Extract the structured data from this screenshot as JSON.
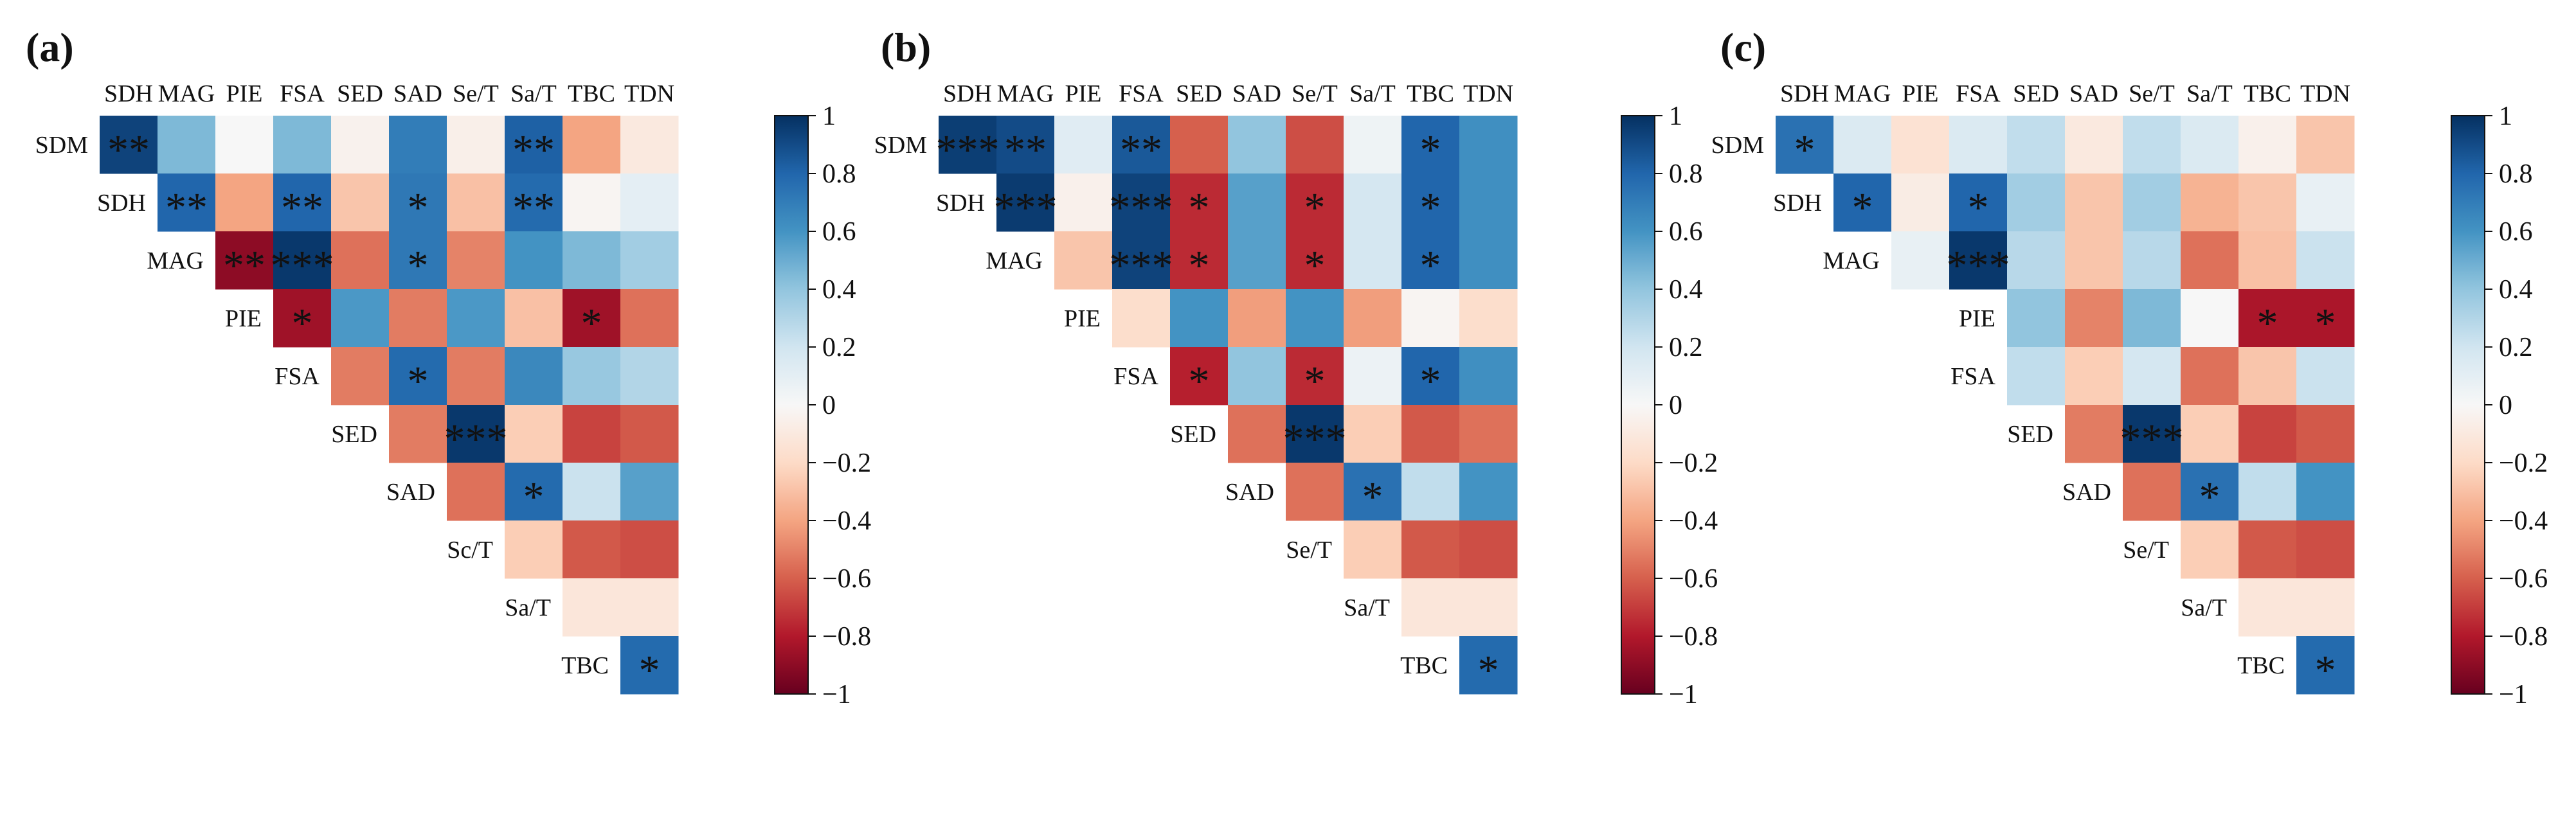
{
  "colors": {
    "positive": "#053061",
    "neutral": "#f7f7f7",
    "negative": "#67001f"
  },
  "chart_data": [
    {
      "type": "heatmap",
      "panel": "(a)",
      "x_labels": [
        "SDH",
        "MAG",
        "PIE",
        "FSA",
        "SED",
        "SAD",
        "Se/T",
        "Sa/T",
        "TBC",
        "TDN"
      ],
      "y_labels": [
        "SDM",
        "SDH",
        "MAG",
        "PIE",
        "FSA",
        "SED",
        "SAD",
        "Sc/T",
        "Sa/T",
        "TBC"
      ],
      "values": [
        [
          0.93,
          0.45,
          0.0,
          0.45,
          -0.04,
          0.7,
          -0.06,
          0.82,
          -0.4,
          -0.1
        ],
        [
          null,
          0.8,
          -0.4,
          0.8,
          -0.28,
          0.72,
          -0.3,
          0.78,
          -0.02,
          0.1
        ],
        [
          null,
          null,
          -0.9,
          0.97,
          -0.55,
          0.72,
          -0.5,
          0.6,
          0.45,
          0.35
        ],
        [
          null,
          null,
          null,
          -0.85,
          0.58,
          -0.52,
          0.58,
          -0.3,
          -0.85,
          -0.55
        ],
        [
          null,
          null,
          null,
          null,
          -0.52,
          0.78,
          -0.52,
          0.65,
          0.38,
          0.3
        ],
        [
          null,
          null,
          null,
          null,
          null,
          -0.52,
          0.97,
          -0.25,
          -0.68,
          -0.62
        ],
        [
          null,
          null,
          null,
          null,
          null,
          null,
          -0.55,
          0.78,
          0.22,
          0.55
        ],
        [
          null,
          null,
          null,
          null,
          null,
          null,
          null,
          -0.25,
          -0.62,
          -0.65
        ],
        [
          null,
          null,
          null,
          null,
          null,
          null,
          null,
          null,
          -0.12,
          -0.12
        ],
        [
          null,
          null,
          null,
          null,
          null,
          null,
          null,
          null,
          null,
          0.78
        ]
      ],
      "annotations": [
        [
          0,
          0,
          "**"
        ],
        [
          0,
          7,
          "**"
        ],
        [
          1,
          1,
          "**"
        ],
        [
          1,
          3,
          "**"
        ],
        [
          1,
          5,
          "*"
        ],
        [
          1,
          7,
          "**"
        ],
        [
          2,
          2,
          "**"
        ],
        [
          2,
          3,
          "***"
        ],
        [
          2,
          5,
          "*"
        ],
        [
          3,
          3,
          "*"
        ],
        [
          3,
          8,
          "*"
        ],
        [
          4,
          5,
          "*"
        ],
        [
          5,
          6,
          "***"
        ],
        [
          6,
          7,
          "*"
        ],
        [
          9,
          9,
          "*"
        ]
      ],
      "colorbar": {
        "min": -1,
        "max": 1,
        "ticks": [
          "1",
          "0.8",
          "0.6",
          "0.4",
          "0.2",
          "0",
          "−0.2",
          "−0.4",
          "−0.6",
          "−0.8",
          "−1"
        ]
      }
    },
    {
      "type": "heatmap",
      "panel": "(b)",
      "x_labels": [
        "SDH",
        "MAG",
        "PIE",
        "FSA",
        "SED",
        "SAD",
        "Se/T",
        "Sa/T",
        "TBC",
        "TDN"
      ],
      "y_labels": [
        "SDM",
        "SDH",
        "MAG",
        "PIE",
        "FSA",
        "SED",
        "SAD",
        "Se/T",
        "Sa/T",
        "TBC"
      ],
      "values": [
        [
          0.95,
          0.9,
          0.12,
          0.85,
          -0.6,
          0.4,
          -0.65,
          0.05,
          0.8,
          0.62
        ],
        [
          null,
          0.96,
          -0.05,
          0.93,
          -0.75,
          0.55,
          -0.75,
          0.18,
          0.8,
          0.62
        ],
        [
          null,
          null,
          -0.28,
          0.93,
          -0.75,
          0.55,
          -0.75,
          0.18,
          0.8,
          0.62
        ],
        [
          null,
          null,
          null,
          -0.18,
          0.6,
          -0.42,
          0.6,
          -0.42,
          -0.02,
          -0.18
        ],
        [
          null,
          null,
          null,
          null,
          -0.78,
          0.4,
          -0.75,
          0.06,
          0.8,
          0.62
        ],
        [
          null,
          null,
          null,
          null,
          null,
          -0.55,
          0.97,
          -0.25,
          -0.62,
          -0.55
        ],
        [
          null,
          null,
          null,
          null,
          null,
          null,
          -0.55,
          0.75,
          0.25,
          0.6
        ],
        [
          null,
          null,
          null,
          null,
          null,
          null,
          null,
          -0.25,
          -0.62,
          -0.65
        ],
        [
          null,
          null,
          null,
          null,
          null,
          null,
          null,
          null,
          -0.12,
          -0.12
        ],
        [
          null,
          null,
          null,
          null,
          null,
          null,
          null,
          null,
          null,
          0.78
        ]
      ],
      "annotations": [
        [
          0,
          0,
          "***"
        ],
        [
          0,
          1,
          "**"
        ],
        [
          0,
          3,
          "**"
        ],
        [
          0,
          8,
          "*"
        ],
        [
          1,
          1,
          "***"
        ],
        [
          1,
          3,
          "***"
        ],
        [
          1,
          4,
          "*"
        ],
        [
          1,
          6,
          "*"
        ],
        [
          1,
          8,
          "*"
        ],
        [
          2,
          3,
          "***"
        ],
        [
          2,
          4,
          "*"
        ],
        [
          2,
          6,
          "*"
        ],
        [
          2,
          8,
          "*"
        ],
        [
          4,
          4,
          "*"
        ],
        [
          4,
          6,
          "*"
        ],
        [
          4,
          8,
          "*"
        ],
        [
          5,
          6,
          "***"
        ],
        [
          6,
          7,
          "*"
        ],
        [
          9,
          9,
          "*"
        ]
      ],
      "colorbar": {
        "min": -1,
        "max": 1,
        "ticks": [
          "1",
          "0.8",
          "0.6",
          "0.4",
          "0.2",
          "0",
          "−0.2",
          "−0.4",
          "−0.6",
          "−0.8",
          "−1"
        ]
      }
    },
    {
      "type": "heatmap",
      "panel": "(c)",
      "x_labels": [
        "SDH",
        "MAG",
        "PIE",
        "FSA",
        "SED",
        "SAD",
        "Se/T",
        "Sa/T",
        "TBC",
        "TDN"
      ],
      "y_labels": [
        "SDM",
        "SDH",
        "MAG",
        "PIE",
        "FSA",
        "SED",
        "SAD",
        "Se/T",
        "Sa/T",
        "TBC"
      ],
      "values": [
        [
          0.75,
          0.15,
          -0.15,
          0.15,
          0.25,
          -0.1,
          0.25,
          0.15,
          -0.05,
          -0.28
        ],
        [
          null,
          0.8,
          -0.08,
          0.8,
          0.35,
          -0.28,
          0.35,
          -0.35,
          -0.28,
          0.08
        ],
        [
          null,
          null,
          0.08,
          0.97,
          0.28,
          -0.28,
          0.28,
          -0.55,
          -0.3,
          0.22
        ],
        [
          null,
          null,
          null,
          null,
          0.4,
          -0.5,
          0.45,
          0.0,
          -0.82,
          -0.82
        ],
        [
          null,
          null,
          null,
          null,
          0.25,
          -0.25,
          0.18,
          -0.55,
          -0.28,
          0.22
        ],
        [
          null,
          null,
          null,
          null,
          null,
          -0.52,
          0.97,
          -0.25,
          -0.68,
          -0.62
        ],
        [
          null,
          null,
          null,
          null,
          null,
          null,
          -0.55,
          0.75,
          0.25,
          0.6
        ],
        [
          null,
          null,
          null,
          null,
          null,
          null,
          null,
          -0.25,
          -0.62,
          -0.65
        ],
        [
          null,
          null,
          null,
          null,
          null,
          null,
          null,
          null,
          -0.12,
          -0.12
        ],
        [
          null,
          null,
          null,
          null,
          null,
          null,
          null,
          null,
          null,
          0.78
        ]
      ],
      "annotations": [
        [
          0,
          0,
          "*"
        ],
        [
          1,
          1,
          "*"
        ],
        [
          1,
          3,
          "*"
        ],
        [
          2,
          3,
          "***"
        ],
        [
          3,
          8,
          "*"
        ],
        [
          3,
          9,
          "*"
        ],
        [
          5,
          6,
          "***"
        ],
        [
          6,
          7,
          "*"
        ],
        [
          9,
          9,
          "*"
        ]
      ],
      "colorbar": {
        "min": -1,
        "max": 1,
        "ticks": [
          "1",
          "0.8",
          "0.6",
          "0.4",
          "0.2",
          "0",
          "−0.2",
          "−0.4",
          "−0.6",
          "−0.8",
          "−1"
        ]
      }
    }
  ]
}
